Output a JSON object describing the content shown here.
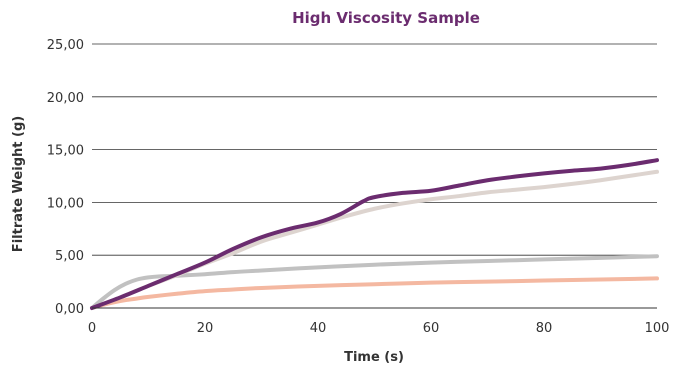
{
  "chart_data": {
    "type": "line",
    "title": "High Viscosity Sample",
    "xlabel": "Time (s)",
    "ylabel": "Filtrate Weight (g)",
    "xlim": [
      0,
      100
    ],
    "ylim": [
      0,
      25
    ],
    "x_ticks": [
      0,
      20,
      40,
      60,
      80,
      100
    ],
    "x_tick_labels": [
      "0",
      "20",
      "40",
      "60",
      "80",
      "100"
    ],
    "y_ticks": [
      0,
      5,
      10,
      15,
      20,
      25
    ],
    "y_tick_labels": [
      "0,00",
      "5,00",
      "10,00",
      "15,00",
      "20,00",
      "25,00"
    ],
    "grid": "horizontal",
    "legend": "none",
    "series": [
      {
        "color": "#c1c1c1",
        "width": 4,
        "x": [
          0,
          2,
          4,
          6,
          8,
          10,
          12,
          15,
          20,
          25,
          30,
          40,
          50,
          60,
          70,
          80,
          90,
          100
        ],
        "y": [
          0,
          0.9,
          1.7,
          2.3,
          2.7,
          2.9,
          3.0,
          3.05,
          3.2,
          3.4,
          3.55,
          3.85,
          4.1,
          4.3,
          4.45,
          4.6,
          4.75,
          4.9
        ]
      },
      {
        "color": "#f4b8a1",
        "width": 4,
        "x": [
          0,
          2,
          4,
          6,
          8,
          10,
          15,
          20,
          25,
          30,
          40,
          50,
          60,
          70,
          80,
          90,
          100
        ],
        "y": [
          0,
          0.3,
          0.55,
          0.75,
          0.9,
          1.05,
          1.35,
          1.6,
          1.75,
          1.9,
          2.1,
          2.25,
          2.4,
          2.5,
          2.6,
          2.7,
          2.8
        ]
      },
      {
        "color": "#ddd4cf",
        "width": 4,
        "x": [
          0,
          5,
          10,
          15,
          20,
          25,
          30,
          35,
          40,
          45,
          50,
          55,
          60,
          65,
          70,
          75,
          80,
          85,
          90,
          95,
          100
        ],
        "y": [
          0,
          1.0,
          2.1,
          3.1,
          4.2,
          5.2,
          6.3,
          7.1,
          7.9,
          8.7,
          9.4,
          9.9,
          10.3,
          10.6,
          10.95,
          11.2,
          11.45,
          11.75,
          12.1,
          12.5,
          12.9
        ]
      },
      {
        "color": "#6b2c6f",
        "width": 4,
        "x": [
          0,
          5,
          10,
          15,
          20,
          25,
          30,
          35,
          40,
          44,
          48,
          50,
          55,
          60,
          65,
          70,
          75,
          80,
          85,
          90,
          95,
          100
        ],
        "y": [
          0,
          1.0,
          2.1,
          3.2,
          4.3,
          5.6,
          6.7,
          7.5,
          8.1,
          8.9,
          10.1,
          10.5,
          10.9,
          11.1,
          11.6,
          12.1,
          12.45,
          12.75,
          13.0,
          13.2,
          13.55,
          14.0
        ]
      }
    ]
  }
}
